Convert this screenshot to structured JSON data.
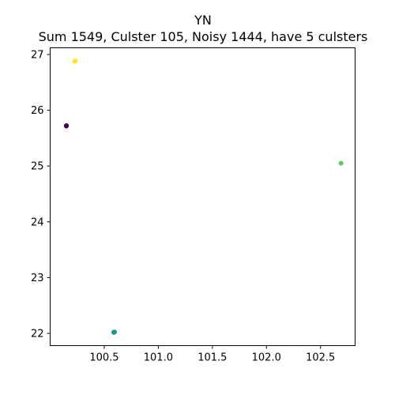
{
  "chart_data": {
    "type": "scatter",
    "title": "YN",
    "subtitle": "Sum 1549, Culster 105, Noisy 1444, have 5 culsters",
    "xlabel": "",
    "ylabel": "",
    "xlim": [
      100.0,
      102.82
    ],
    "ylim": [
      21.78,
      27.12
    ],
    "x_ticks": [
      100.5,
      101.0,
      101.5,
      102.0,
      102.5
    ],
    "y_ticks": [
      22,
      23,
      24,
      25,
      26,
      27
    ],
    "grid": false,
    "series": [
      {
        "color": "#440154",
        "points": [
          [
            100.15,
            25.72
          ],
          [
            100.151,
            25.725
          ],
          [
            100.149,
            25.718
          ]
        ]
      },
      {
        "color": "#21918c",
        "points": [
          [
            100.59,
            22.02
          ],
          [
            100.595,
            22.025
          ],
          [
            100.588,
            22.018
          ]
        ]
      },
      {
        "color": "#5ec962",
        "points": [
          [
            102.69,
            25.05
          ]
        ]
      },
      {
        "color": "#fde725",
        "points": [
          [
            100.23,
            26.88
          ],
          [
            100.232,
            26.885
          ],
          [
            100.228,
            26.878
          ]
        ]
      }
    ]
  }
}
